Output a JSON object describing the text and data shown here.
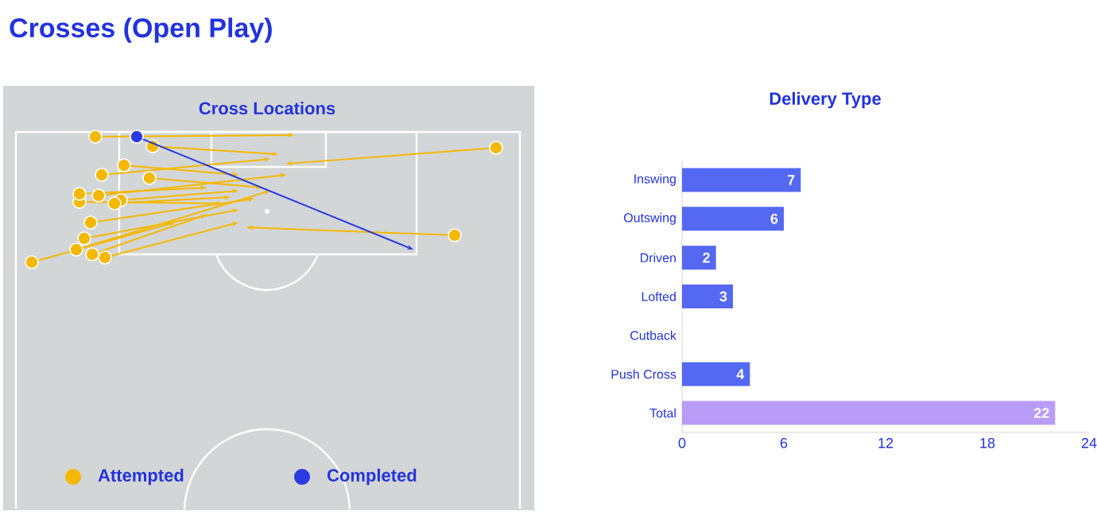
{
  "chart_data": [
    {
      "type": "other",
      "title": "Crosses (Open Play)",
      "subtitle": "Cross Locations",
      "legend": "bottom",
      "series": [
        {
          "name": "Attempted",
          "color": "#f5b800"
        },
        {
          "name": "Completed",
          "color": "#2a3be0"
        }
      ]
    },
    {
      "type": "bar",
      "title": "Delivery Type",
      "orientation": "horizontal",
      "categories": [
        "Inswing",
        "Outswing",
        "Driven",
        "Lofted",
        "Cutback",
        "Push Cross",
        "Total"
      ],
      "values": [
        7,
        6,
        2,
        3,
        0,
        4,
        22
      ],
      "colors": [
        "#5468f2",
        "#5468f2",
        "#5468f2",
        "#5468f2",
        "#5468f2",
        "#5468f2",
        "#b99cf7"
      ],
      "value_labels": [
        "7",
        "6",
        "2",
        "3",
        null,
        "4",
        "22"
      ],
      "xlim": [
        0,
        24
      ],
      "xticks": [
        0,
        6,
        12,
        18,
        24
      ]
    }
  ]
}
